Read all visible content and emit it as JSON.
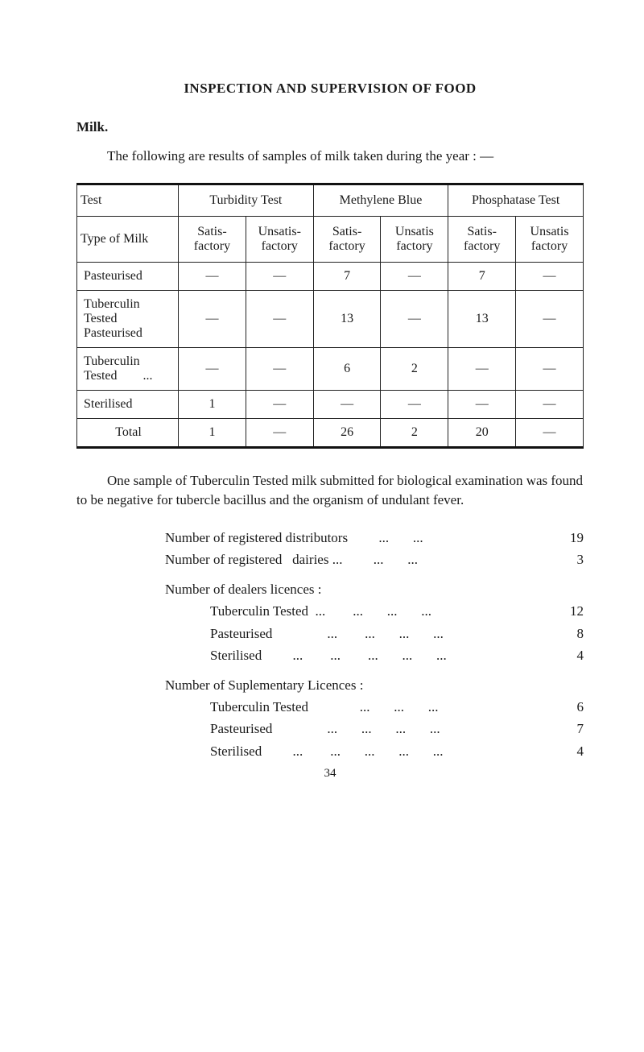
{
  "heading": "INSPECTION AND SUPERVISION OF FOOD",
  "sub": "Milk.",
  "intro": "The following are results of samples of milk taken during the year : —",
  "tbl": {
    "h_test": "Test",
    "h_turb": "Turbidity Test",
    "h_meth": "Methylene Blue",
    "h_phos": "Phosphatase Test",
    "h_type": "Type of Milk",
    "h_sat": "Satis-\nfactory",
    "h_uns": "Unsatis-\nfactory",
    "h_sat2": "Satis-\nfactory",
    "h_uns2": "Unsatis\nfactory",
    "h_sat3": "Satis-\nfactory",
    "h_uns3": "Unsatis\nfactory",
    "rows": [
      {
        "name": "Pasteurised",
        "c": [
          "—",
          "—",
          "7",
          "—",
          "7",
          "—"
        ]
      },
      {
        "name": "Tuberculin\nTested\nPasteurised",
        "c": [
          "—",
          "—",
          "13",
          "—",
          "13",
          "—"
        ]
      },
      {
        "name": "Tuberculin\nTested        ...",
        "c": [
          "—",
          "—",
          "6",
          "2",
          "—",
          "—"
        ]
      },
      {
        "name": "Sterilised",
        "c": [
          "1",
          "—",
          "—",
          "—",
          "—",
          "—"
        ]
      },
      {
        "name": "Total",
        "c": [
          "1",
          "—",
          "26",
          "2",
          "20",
          "—"
        ]
      }
    ]
  },
  "mid_para": "One sample of Tuberculin Tested milk submitted for biological examination was found to be negative for tubercle bacillus and the organism of undulant fever.",
  "lines": {
    "l0": {
      "t": "Number of registered distributors         ...       ...",
      "v": "19"
    },
    "l1": {
      "t": "Number of registered   dairies ...         ...       ...",
      "v": "3"
    },
    "l2": "Number  of dealers  licences :",
    "l3": {
      "t": "Tuberculin Tested  ...        ...       ...       ...",
      "v": "12"
    },
    "l4": {
      "t": "Pasteurised                ...        ...       ...       ...",
      "v": "8"
    },
    "l5": {
      "t": "Sterilised         ...        ...        ...       ...       ...",
      "v": "4"
    },
    "l6": "Number of Suplementary Licences :",
    "l7": {
      "t": "Tuberculin Tested               ...       ...       ...",
      "v": "6"
    },
    "l8": {
      "t": "Pasteurised                ...       ...       ...       ...",
      "v": "7"
    },
    "l9": {
      "t": "Sterilised         ...        ...       ...       ...       ...",
      "v": "4"
    }
  },
  "pagenum": "34"
}
